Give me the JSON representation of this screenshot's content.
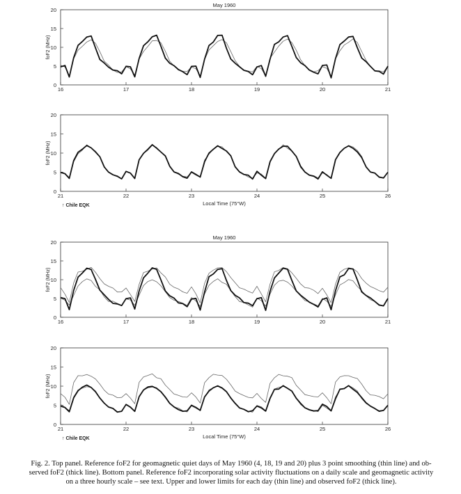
{
  "figure": {
    "top_block_title": "May 1960",
    "bottom_block_title": "May 1960"
  },
  "caption": {
    "lines": [
      "Fig. 2. Top panel. Reference foF2 for geomagnetic quiet days of May 1960 (4, 18, 19 and 20) plus 3 point smoothing (thin line) and ob-",
      "served foF2 (thick line). Bottom panel. Reference foF2 incorporating solar activity fluctuations on a daily scale and geomagnetic activity",
      "on a three hourly scale – see text. Upper and lower limits for each day (thin line) and observed foF2 (thick line)."
    ]
  },
  "chart_data": [
    {
      "type": "line",
      "title": "May 1960",
      "xlabel": "",
      "ylabel": "foF2 (MHz)",
      "xlim": [
        16,
        21
      ],
      "ylim": [
        0,
        20
      ],
      "xticks": [
        16,
        17,
        18,
        19,
        20,
        21
      ],
      "yticks": [
        0,
        5,
        10,
        15,
        20
      ],
      "annotation": "",
      "series": [
        {
          "name": "Reference foF2 (3 point smoothing)",
          "style": "thin",
          "values": [
            5,
            4.5,
            2.5,
            7,
            9,
            10.5,
            11.5,
            12,
            11,
            9,
            6.5,
            5,
            4,
            3.5,
            3.5
          ]
        },
        {
          "name": "Observed foF2",
          "style": "thick",
          "values": [
            5,
            5,
            2,
            7,
            10.5,
            11.5,
            13,
            13,
            10,
            7,
            6,
            5,
            4,
            3.5,
            3
          ]
        }
      ]
    },
    {
      "type": "line",
      "title": "",
      "xlabel": "Local Time (75°W)",
      "ylabel": "foF2 (MHz)",
      "xlim": [
        21,
        26
      ],
      "ylim": [
        0,
        20
      ],
      "xticks": [
        21,
        22,
        23,
        24,
        25,
        26
      ],
      "yticks": [
        0,
        5,
        10,
        15,
        20
      ],
      "annotation": "↑ Chile EQK",
      "series": [
        {
          "name": "Reference foF2 (3 point smoothing)",
          "style": "thin",
          "values": [
            5,
            4.5,
            3.5,
            8,
            10,
            11,
            12,
            11.5,
            10.5,
            9,
            6.5,
            5,
            4.5,
            4,
            3.5
          ]
        },
        {
          "name": "Observed foF2",
          "style": "thick",
          "values": [
            5,
            4.5,
            3.5,
            8,
            10,
            11,
            12,
            11.5,
            10.5,
            9,
            6.5,
            5,
            4.5,
            4,
            3.5
          ]
        }
      ]
    },
    {
      "type": "line",
      "title": "May 1960",
      "xlabel": "",
      "ylabel": "foF2 (MHz)",
      "xlim": [
        16,
        21
      ],
      "ylim": [
        0,
        20
      ],
      "xticks": [
        16,
        17,
        18,
        19,
        20,
        21
      ],
      "yticks": [
        0,
        5,
        10,
        15,
        20
      ],
      "annotation": "",
      "series": [
        {
          "name": "Upper limit",
          "style": "thin",
          "values": [
            8,
            6,
            4,
            9,
            12,
            12.5,
            13,
            13,
            12,
            10.5,
            9,
            8,
            7.5,
            7,
            6.5
          ]
        },
        {
          "name": "Lower limit",
          "style": "thin",
          "values": [
            5,
            4.5,
            3,
            6,
            8.5,
            9.5,
            10,
            9.5,
            8.5,
            7,
            5.5,
            4.5,
            4,
            3.5,
            3
          ]
        },
        {
          "name": "Observed foF2",
          "style": "thick",
          "values": [
            5,
            5,
            2,
            7,
            10.5,
            11.5,
            13,
            13,
            10,
            7,
            6,
            5,
            4,
            3.5,
            3
          ]
        }
      ]
    },
    {
      "type": "line",
      "title": "",
      "xlabel": "Local Time (75°W)",
      "ylabel": "foF2 (MHz)",
      "xlim": [
        21,
        26
      ],
      "ylim": [
        0,
        20
      ],
      "xticks": [
        21,
        22,
        23,
        24,
        25,
        26
      ],
      "yticks": [
        0,
        5,
        10,
        15,
        20
      ],
      "annotation": "↑ Chile EQK",
      "series": [
        {
          "name": "Upper limit",
          "style": "thin",
          "values": [
            8,
            7,
            5.5,
            11,
            12.5,
            13,
            13,
            12.5,
            12,
            10.5,
            9,
            8,
            7.5,
            7,
            7
          ]
        },
        {
          "name": "Lower limit",
          "style": "thin",
          "values": [
            5,
            4.5,
            3.5,
            7,
            9,
            9.5,
            10,
            9.5,
            8.5,
            7,
            5.5,
            4.5,
            4,
            3.5,
            3.5
          ]
        },
        {
          "name": "Observed foF2",
          "style": "thick",
          "values": [
            5,
            4.5,
            3.5,
            7,
            9,
            9.5,
            10,
            9.5,
            8.5,
            7,
            5.5,
            4.5,
            4,
            3.5,
            3.5
          ]
        }
      ]
    }
  ]
}
